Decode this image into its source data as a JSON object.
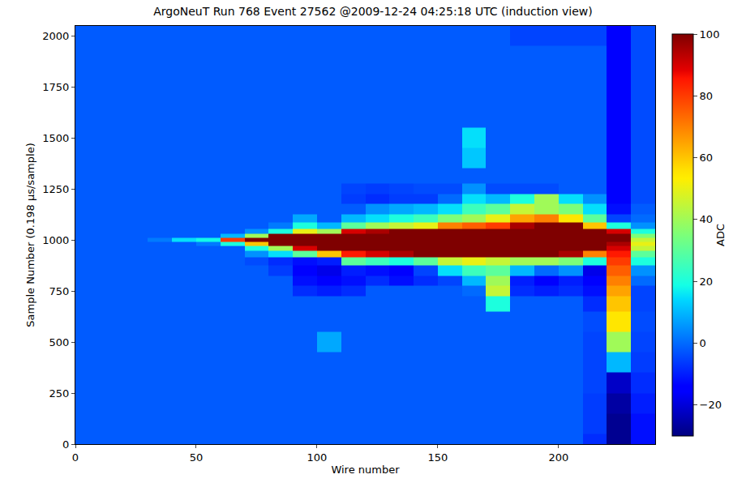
{
  "chart_data": {
    "type": "heatmap",
    "title": "ArgoNeuT Run 768 Event 27562 @2009-12-24 04:25:18 UTC (induction view)",
    "x_label": "Wire number",
    "y_label": "Sample Number (0.198 μs/sample)",
    "colorbar_label": "ADC",
    "color": "jet",
    "xlim": [
      0,
      240
    ],
    "ylim": [
      0,
      2048
    ],
    "xticks": [
      0,
      50,
      100,
      150,
      200
    ],
    "yticks": [
      0,
      250,
      500,
      750,
      1000,
      1250,
      1500,
      1750,
      2000
    ],
    "zlim": [
      -30,
      100
    ],
    "zticks": [
      -20,
      0,
      20,
      40,
      60,
      80,
      100
    ],
    "x": [
      5,
      15,
      25,
      35,
      45,
      55,
      65,
      75,
      85,
      95,
      105,
      115,
      125,
      135,
      145,
      155,
      165,
      175,
      185,
      195,
      205,
      215,
      225,
      235
    ],
    "y": [
      0,
      100,
      200,
      300,
      400,
      500,
      600,
      700,
      750,
      800,
      850,
      900,
      930,
      960,
      980,
      1000,
      1020,
      1040,
      1070,
      1100,
      1150,
      1200,
      1250,
      1300,
      1400,
      1500,
      1600,
      1700,
      1800,
      1900,
      2000
    ],
    "cells": [
      [
        -2,
        -2,
        -2,
        -2,
        -2,
        -2,
        -2,
        -2,
        -2,
        -2,
        -2,
        -2,
        -2,
        -2,
        -2,
        -2,
        -2,
        -2,
        -2,
        -2,
        -2,
        -8,
        -28,
        -12
      ],
      [
        -2,
        -2,
        -2,
        -2,
        -2,
        -2,
        -2,
        -2,
        -2,
        -2,
        -2,
        -2,
        -2,
        -2,
        -2,
        -2,
        -2,
        -2,
        -2,
        -2,
        -2,
        -6,
        -28,
        -12
      ],
      [
        -2,
        -2,
        -2,
        -2,
        -2,
        -2,
        -2,
        -2,
        -2,
        -2,
        -2,
        -2,
        -2,
        -2,
        -2,
        -2,
        -2,
        -2,
        -2,
        -2,
        -2,
        -6,
        -26,
        -10
      ],
      [
        -2,
        -2,
        -2,
        -2,
        -2,
        -2,
        -2,
        -2,
        -2,
        -2,
        -2,
        -2,
        -2,
        -2,
        -2,
        -2,
        -2,
        -2,
        -2,
        -2,
        -2,
        -5,
        -22,
        -8
      ],
      [
        -2,
        -2,
        -2,
        -2,
        -2,
        -2,
        -2,
        -2,
        -2,
        -2,
        -2,
        -2,
        -2,
        -2,
        -2,
        -2,
        -2,
        -2,
        -2,
        -2,
        -2,
        -5,
        10,
        -6
      ],
      [
        -2,
        -2,
        -2,
        -2,
        -2,
        -2,
        -2,
        -2,
        -2,
        -2,
        8,
        -2,
        -2,
        -2,
        -2,
        -2,
        -2,
        -2,
        -2,
        -2,
        -2,
        -5,
        40,
        -5
      ],
      [
        -2,
        -2,
        -2,
        -2,
        -2,
        -2,
        -2,
        -2,
        -2,
        -2,
        -2,
        -2,
        -2,
        -2,
        -2,
        -2,
        -2,
        -2,
        -2,
        -2,
        -2,
        -4,
        55,
        -4
      ],
      [
        -2,
        -2,
        -2,
        -2,
        -2,
        -2,
        -2,
        -2,
        -2,
        -2,
        -2,
        -2,
        -2,
        -2,
        -2,
        -2,
        -2,
        20,
        -2,
        -2,
        -2,
        -8,
        60,
        -5
      ],
      [
        -2,
        -2,
        -2,
        -2,
        -2,
        -2,
        -2,
        -2,
        -2,
        -8,
        -10,
        -8,
        -2,
        -2,
        -2,
        -2,
        0,
        45,
        -8,
        -10,
        -8,
        -12,
        65,
        -5
      ],
      [
        -2,
        -2,
        -2,
        -2,
        -2,
        -2,
        -2,
        -2,
        -2,
        -12,
        -15,
        -12,
        -8,
        -12,
        -8,
        -5,
        10,
        40,
        -10,
        -15,
        -10,
        -15,
        70,
        0
      ],
      [
        -2,
        -2,
        -2,
        -2,
        -2,
        -2,
        -2,
        -2,
        -6,
        -15,
        -18,
        -10,
        -12,
        -15,
        -5,
        15,
        25,
        30,
        10,
        0,
        5,
        -18,
        75,
        5
      ],
      [
        -2,
        -2,
        -2,
        -2,
        -2,
        -2,
        -2,
        -4,
        -8,
        -12,
        -10,
        30,
        25,
        20,
        30,
        45,
        50,
        45,
        40,
        40,
        35,
        20,
        80,
        20
      ],
      [
        -2,
        -2,
        -2,
        -2,
        -2,
        -2,
        -2,
        5,
        15,
        30,
        60,
        85,
        90,
        95,
        100,
        100,
        100,
        100,
        100,
        100,
        95,
        70,
        85,
        30
      ],
      [
        -2,
        -2,
        -2,
        -2,
        -2,
        -2,
        -2,
        20,
        40,
        90,
        100,
        100,
        100,
        100,
        100,
        100,
        100,
        100,
        100,
        100,
        100,
        100,
        90,
        45
      ],
      [
        -2,
        -2,
        -2,
        -2,
        -2,
        2,
        20,
        60,
        100,
        100,
        100,
        100,
        100,
        100,
        100,
        100,
        100,
        100,
        100,
        100,
        100,
        100,
        95,
        50
      ],
      [
        -2,
        -2,
        -2,
        2,
        15,
        18,
        80,
        100,
        100,
        100,
        100,
        100,
        100,
        100,
        100,
        100,
        100,
        100,
        100,
        100,
        100,
        100,
        100,
        45
      ],
      [
        -2,
        -2,
        -2,
        -2,
        -2,
        -2,
        10,
        40,
        100,
        100,
        100,
        100,
        100,
        100,
        100,
        100,
        100,
        100,
        100,
        100,
        100,
        100,
        100,
        35
      ],
      [
        -2,
        -2,
        -2,
        -2,
        -2,
        -2,
        -2,
        5,
        20,
        50,
        40,
        90,
        95,
        100,
        100,
        100,
        100,
        100,
        100,
        100,
        100,
        100,
        90,
        20
      ],
      [
        -2,
        -2,
        -2,
        -2,
        -2,
        -2,
        -2,
        -2,
        2,
        20,
        10,
        30,
        40,
        45,
        50,
        70,
        75,
        80,
        95,
        100,
        100,
        60,
        20,
        5
      ],
      [
        -2,
        -2,
        -2,
        -2,
        -2,
        -2,
        -2,
        -2,
        -2,
        8,
        -2,
        10,
        15,
        20,
        25,
        35,
        40,
        50,
        65,
        70,
        55,
        30,
        -5,
        0
      ],
      [
        -2,
        -2,
        -2,
        -2,
        -2,
        -2,
        -2,
        -2,
        -2,
        -2,
        -2,
        -2,
        5,
        8,
        10,
        15,
        25,
        30,
        45,
        40,
        35,
        15,
        -12,
        -2
      ],
      [
        -2,
        -2,
        -2,
        -2,
        -2,
        -2,
        -2,
        -2,
        -2,
        -2,
        -2,
        -6,
        -8,
        -6,
        -6,
        0,
        15,
        10,
        20,
        40,
        15,
        5,
        -14,
        -4
      ],
      [
        -2,
        -2,
        -2,
        -2,
        -2,
        -2,
        -2,
        -2,
        -2,
        -2,
        -2,
        -5,
        -6,
        -5,
        -4,
        -4,
        5,
        -4,
        -4,
        -4,
        -2,
        -2,
        -15,
        -4
      ],
      [
        -2,
        -2,
        -2,
        -2,
        -2,
        -2,
        -2,
        -2,
        -2,
        -2,
        -2,
        -2,
        -2,
        -2,
        -2,
        -2,
        -2,
        -2,
        -2,
        -2,
        -2,
        -2,
        -15,
        -4
      ],
      [
        -2,
        -2,
        -2,
        -2,
        -2,
        -2,
        -2,
        -2,
        -2,
        -2,
        -2,
        -2,
        -2,
        -2,
        -2,
        -2,
        12,
        -2,
        -2,
        -2,
        -2,
        -2,
        -15,
        -4
      ],
      [
        -2,
        -2,
        -2,
        -2,
        -2,
        -2,
        -2,
        -2,
        -2,
        -2,
        -2,
        -2,
        -2,
        -2,
        -2,
        -2,
        15,
        -2,
        -2,
        -2,
        -2,
        -2,
        -15,
        -4
      ],
      [
        -2,
        -2,
        -2,
        -2,
        -2,
        -2,
        -2,
        -2,
        -2,
        -2,
        -2,
        -2,
        -2,
        -2,
        -2,
        -2,
        -2,
        -2,
        -2,
        -2,
        -2,
        -2,
        -15,
        -4
      ],
      [
        -2,
        -2,
        -2,
        -2,
        -2,
        -2,
        -2,
        -2,
        -2,
        -2,
        -2,
        -2,
        -2,
        -2,
        -2,
        -2,
        -2,
        -2,
        -2,
        -2,
        -2,
        -2,
        -15,
        -4
      ],
      [
        -2,
        -2,
        -2,
        -2,
        -2,
        -2,
        -2,
        -2,
        -2,
        -2,
        -2,
        -2,
        -2,
        -2,
        -2,
        -2,
        -2,
        -2,
        -2,
        -2,
        -2,
        -2,
        -15,
        -4
      ],
      [
        -2,
        -2,
        -2,
        -2,
        -2,
        -2,
        -2,
        -2,
        -2,
        -2,
        -2,
        -2,
        -2,
        -2,
        -2,
        -2,
        -2,
        -2,
        -2,
        -2,
        -2,
        -2,
        -15,
        -4
      ],
      [
        -2,
        -2,
        -2,
        -2,
        -2,
        -2,
        -2,
        -2,
        -2,
        -2,
        -2,
        -2,
        -2,
        -2,
        -2,
        -2,
        -2,
        -2,
        -5,
        -5,
        -5,
        -5,
        -15,
        -4
      ]
    ]
  }
}
